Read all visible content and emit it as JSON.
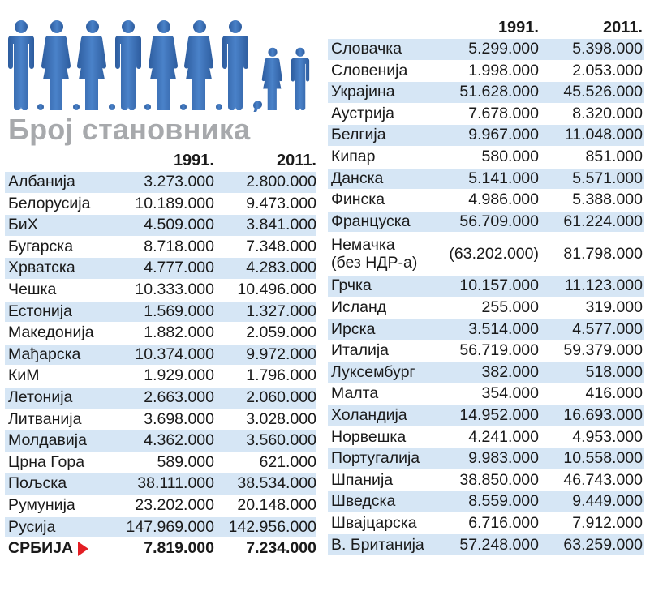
{
  "title": "Број становника",
  "colors": {
    "people": "#3b6fb6",
    "stripe": "#d6e6f5",
    "title": "#a7a9ac",
    "arrow": "#e31e24"
  },
  "icons": {
    "people": "people-silhouettes-icon",
    "highlight": "triangle-right-icon"
  },
  "chart_data": {
    "type": "table",
    "title": "Број становника",
    "columns": [
      "1991.",
      "2011."
    ],
    "left_table": [
      {
        "country": "Албанија",
        "y1991": "3.273.000",
        "y2011": "2.800.000"
      },
      {
        "country": "Белорусија",
        "y1991": "10.189.000",
        "y2011": "9.473.000"
      },
      {
        "country": "БиХ",
        "y1991": "4.509.000",
        "y2011": "3.841.000"
      },
      {
        "country": "Бугарска",
        "y1991": "8.718.000",
        "y2011": "7.348.000"
      },
      {
        "country": "Хрватска",
        "y1991": "4.777.000",
        "y2011": "4.283.000"
      },
      {
        "country": "Чешка",
        "y1991": "10.333.000",
        "y2011": "10.496.000"
      },
      {
        "country": "Естонија",
        "y1991": "1.569.000",
        "y2011": "1.327.000"
      },
      {
        "country": "Македонија",
        "y1991": "1.882.000",
        "y2011": "2.059.000"
      },
      {
        "country": "Мађарска",
        "y1991": "10.374.000",
        "y2011": "9.972.000"
      },
      {
        "country": "КиМ",
        "y1991": "1.929.000",
        "y2011": "1.796.000"
      },
      {
        "country": "Летонија",
        "y1991": "2.663.000",
        "y2011": "2.060.000"
      },
      {
        "country": "Литванија",
        "y1991": "3.698.000",
        "y2011": "3.028.000"
      },
      {
        "country": "Молдавија",
        "y1991": "4.362.000",
        "y2011": "3.560.000"
      },
      {
        "country": "Црна Гора",
        "y1991": "589.000",
        "y2011": "621.000"
      },
      {
        "country": "Пољска",
        "y1991": "38.111.000",
        "y2011": "38.534.000"
      },
      {
        "country": "Румунија",
        "y1991": "23.202.000",
        "y2011": "20.148.000"
      },
      {
        "country": "Русија",
        "y1991": "147.969.000",
        "y2011": "142.956.000"
      },
      {
        "country": "СРБИЈА",
        "y1991": "7.819.000",
        "y2011": "7.234.000",
        "highlight": true
      }
    ],
    "right_table": [
      {
        "country": "Словачка",
        "y1991": "5.299.000",
        "y2011": "5.398.000"
      },
      {
        "country": "Словенија",
        "y1991": "1.998.000",
        "y2011": "2.053.000"
      },
      {
        "country": "Украјина",
        "y1991": "51.628.000",
        "y2011": "45.526.000"
      },
      {
        "country": "Аустрија",
        "y1991": "7.678.000",
        "y2011": "8.320.000"
      },
      {
        "country": "Белгија",
        "y1991": "9.967.000",
        "y2011": "11.048.000"
      },
      {
        "country": "Кипар",
        "y1991": "580.000",
        "y2011": "851.000"
      },
      {
        "country": "Данска",
        "y1991": "5.141.000",
        "y2011": "5.571.000"
      },
      {
        "country": "Финска",
        "y1991": "4.986.000",
        "y2011": "5.388.000"
      },
      {
        "country": "Француска",
        "y1991": "56.709.000",
        "y2011": "61.224.000"
      },
      {
        "country": "Немачка",
        "country_line2": "(без НДР-а)",
        "y1991": "(63.202.000)",
        "y2011": "81.798.000"
      },
      {
        "country": "Грчка",
        "y1991": "10.157.000",
        "y2011": "11.123.000"
      },
      {
        "country": "Исланд",
        "y1991": "255.000",
        "y2011": "319.000"
      },
      {
        "country": "Ирска",
        "y1991": "3.514.000",
        "y2011": "4.577.000"
      },
      {
        "country": "Италија",
        "y1991": "56.719.000",
        "y2011": "59.379.000"
      },
      {
        "country": "Луксембург",
        "y1991": "382.000",
        "y2011": "518.000"
      },
      {
        "country": "Малта",
        "y1991": "354.000",
        "y2011": "416.000"
      },
      {
        "country": "Холандија",
        "y1991": "14.952.000",
        "y2011": "16.693.000"
      },
      {
        "country": "Норвешка",
        "y1991": "4.241.000",
        "y2011": "4.953.000"
      },
      {
        "country": "Португалија",
        "y1991": "9.983.000",
        "y2011": "10.558.000"
      },
      {
        "country": "Шпанија",
        "y1991": "38.850.000",
        "y2011": "46.743.000"
      },
      {
        "country": "Шведска",
        "y1991": "8.559.000",
        "y2011": "9.449.000"
      },
      {
        "country": "Швајцарска",
        "y1991": "6.716.000",
        "y2011": "7.912.000"
      },
      {
        "country": "В. Британија",
        "y1991": "57.248.000",
        "y2011": "63.259.000"
      }
    ]
  }
}
